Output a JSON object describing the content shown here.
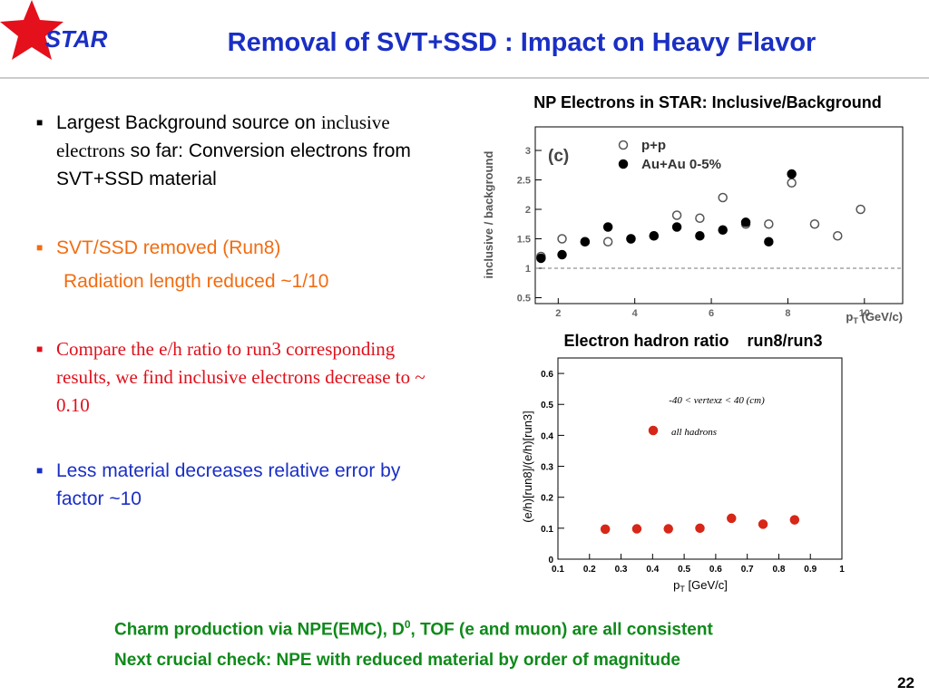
{
  "header": {
    "logo": "STAR",
    "title": "Removal of SVT+SSD : Impact on Heavy Flavor"
  },
  "bullets": [
    {
      "parts": [
        "Largest Background source on",
        "inclusive electrons",
        "so far: Conversion electrons from SVT+SSD material"
      ]
    },
    {
      "parts": [
        "SVT/SSD removed (Run8)"
      ],
      "sub": "Radiation length reduced ~1/10"
    },
    {
      "parts": [
        "Compare the e/h ratio to run3 corresponding results, we find inclusive electrons decrease to ~ 0.10"
      ]
    },
    {
      "parts": [
        "Less material decreases relative error by factor ~10"
      ]
    }
  ],
  "chart_data": [
    {
      "type": "scatter",
      "title": "NP Electrons in STAR: Inclusive/Background",
      "panel_label": "(c)",
      "y_label": "inclusive / background",
      "x_label": [
        "p",
        "T",
        " (GeV/c)"
      ],
      "x": [
        1.55,
        2.1,
        2.7,
        3.3,
        3.9,
        4.5,
        5.1,
        5.7,
        6.3,
        6.9,
        7.5,
        8.1,
        8.7,
        9.3,
        9.9
      ],
      "series": [
        {
          "name": "p+p",
          "marker": "open",
          "color": "#555555",
          "values": [
            1.2,
            1.5,
            1.45,
            1.45,
            1.5,
            1.55,
            1.9,
            1.85,
            2.2,
            1.75,
            1.75,
            2.45,
            1.75,
            1.55,
            2.0
          ]
        },
        {
          "name": "Au+Au 0-5%",
          "marker": "filled",
          "color": "#000000",
          "values": [
            1.17,
            1.23,
            1.45,
            1.7,
            1.5,
            1.55,
            1.7,
            1.55,
            1.65,
            1.78,
            1.45,
            2.6,
            null,
            null,
            null
          ]
        }
      ],
      "hline": 1,
      "xlim": [
        1.4,
        11
      ],
      "xticks": [
        2,
        4,
        6,
        8,
        10
      ],
      "ylim": [
        0.4,
        3.4
      ],
      "yticks": [
        0.5,
        1,
        1.5,
        2,
        2.5,
        3
      ]
    },
    {
      "type": "scatter",
      "title": "Electron hadron ratio    run8/run3",
      "y_label": "(e/h)[run8]/(e/h)[run3]",
      "x_label": [
        "p",
        "T",
        " [GeV/c]"
      ],
      "annotation": "-40 < vertexz < 40 (cm)",
      "x": [
        0.25,
        0.35,
        0.45,
        0.55,
        0.65,
        0.75,
        0.85
      ],
      "series": [
        {
          "name": "all hadrons",
          "marker": "filled",
          "color": "#d62718",
          "values": [
            0.097,
            0.098,
            0.098,
            0.1,
            0.132,
            0.113,
            0.127
          ],
          "errors": [
            0,
            0,
            0,
            0,
            0.012,
            0.01,
            0.015
          ]
        }
      ],
      "xlim": [
        0.1,
        1
      ],
      "xticks": [
        0.1,
        0.2,
        0.3,
        0.4,
        0.5,
        0.6,
        0.7,
        0.8,
        0.9,
        1
      ],
      "ylim": [
        0,
        0.65
      ],
      "yticks": [
        0,
        0.1,
        0.2,
        0.3,
        0.4,
        0.5,
        0.6
      ]
    }
  ],
  "footer": {
    "line1": [
      "Charm production via NPE(EMC), D",
      "0",
      ", TOF (e and muon) are all consistent"
    ],
    "line2": "Next crucial check: NPE with reduced material by order of magnitude",
    "page": "22"
  }
}
